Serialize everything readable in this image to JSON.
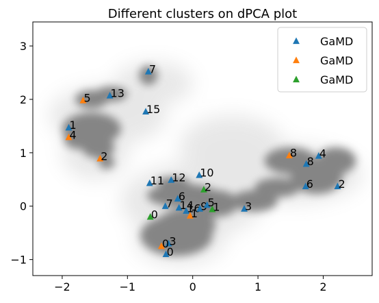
{
  "chart_data": {
    "type": "scatter",
    "title": "Different clusters on dPCA plot",
    "xlabel": "",
    "ylabel": "",
    "xlim": [
      -2.45,
      2.75
    ],
    "ylim": [
      -1.3,
      3.45
    ],
    "xticks": [
      -2,
      -1,
      0,
      1,
      2
    ],
    "yticks": [
      -1,
      0,
      1,
      2,
      3
    ],
    "xtick_labels": [
      "−2",
      "−1",
      "0",
      "1",
      "2"
    ],
    "ytick_labels": [
      "−1",
      "0",
      "1",
      "2",
      "3"
    ],
    "grid": false,
    "legend_position": "top-right",
    "background": {
      "description": "gray density cloud of sampled conformations",
      "color": "#808080"
    },
    "series": [
      {
        "name": "GaMD",
        "color": "#1f77b4",
        "marker": "triangle",
        "points": [
          {
            "label": "7",
            "x": -0.68,
            "y": 2.52
          },
          {
            "label": "13",
            "x": -1.27,
            "y": 2.07
          },
          {
            "label": "15",
            "x": -0.72,
            "y": 1.77
          },
          {
            "label": "1",
            "x": -1.9,
            "y": 1.47
          },
          {
            "label": "10",
            "x": 0.1,
            "y": 0.58
          },
          {
            "label": "12",
            "x": -0.33,
            "y": 0.49
          },
          {
            "label": "11",
            "x": -0.66,
            "y": 0.43
          },
          {
            "label": "6",
            "x": -0.23,
            "y": 0.14
          },
          {
            "label": "7",
            "x": -0.42,
            "y": 0.0
          },
          {
            "label": "14",
            "x": -0.21,
            "y": -0.03
          },
          {
            "label": "16",
            "x": -0.1,
            "y": -0.09
          },
          {
            "label": "9",
            "x": 0.11,
            "y": -0.05
          },
          {
            "label": "5",
            "x": 0.22,
            "y": 0.02
          },
          {
            "label": "3",
            "x": 0.79,
            "y": -0.05
          },
          {
            "label": "8",
            "x": 1.74,
            "y": 0.79
          },
          {
            "label": "4",
            "x": 1.93,
            "y": 0.94
          },
          {
            "label": "6",
            "x": 1.73,
            "y": 0.37
          },
          {
            "label": "2",
            "x": 2.22,
            "y": 0.37
          },
          {
            "label": "3",
            "x": -0.37,
            "y": -0.7
          },
          {
            "label": "0",
            "x": -0.41,
            "y": -0.9
          }
        ]
      },
      {
        "name": "GaMD",
        "color": "#ff7f0e",
        "marker": "triangle",
        "points": [
          {
            "label": "5",
            "x": -1.68,
            "y": 1.98
          },
          {
            "label": "4",
            "x": -1.9,
            "y": 1.29
          },
          {
            "label": "2",
            "x": -1.42,
            "y": 0.89
          },
          {
            "label": "8",
            "x": 1.48,
            "y": 0.95
          },
          {
            "label": "1",
            "x": -0.04,
            "y": -0.18
          },
          {
            "label": "0",
            "x": -0.48,
            "y": -0.75
          }
        ]
      },
      {
        "name": "GaMD",
        "color": "#2ca02c",
        "marker": "triangle",
        "points": [
          {
            "label": "2",
            "x": 0.17,
            "y": 0.31
          },
          {
            "label": "1",
            "x": 0.3,
            "y": -0.06
          },
          {
            "label": "0",
            "x": -0.65,
            "y": -0.2
          }
        ]
      }
    ]
  }
}
